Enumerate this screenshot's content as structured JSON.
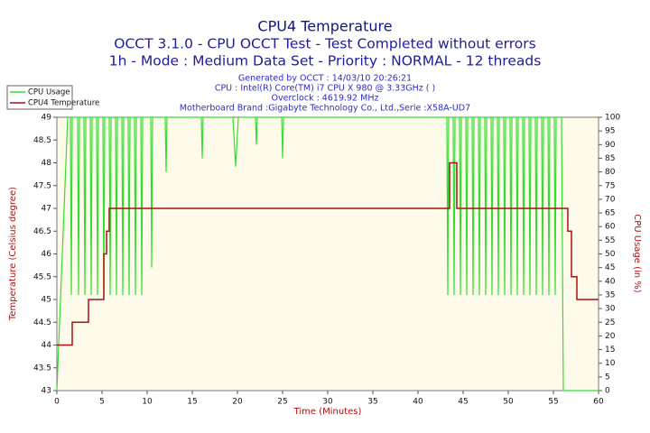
{
  "chart_data": {
    "type": "line",
    "title": "CPU4 Temperature",
    "subtitle_lines": [
      "OCCT 3.1.0 - CPU OCCT Test - Test Completed without errors",
      "1h - Mode : Medium Data Set - Priority : NORMAL - 12 threads"
    ],
    "info_lines": [
      "Generated by OCCT : 14/03/10 20:26:21",
      "CPU : Intel(R) Core(TM) i7 CPU X 980 @ 3.33GHz (  )",
      "Overclock : 4619.92 MHz",
      "Motherboard Brand :Gigabyte Technology Co., Ltd.,Serie :X58A-UD7"
    ],
    "x_label": "Time (Minutes)",
    "y_label": "Temperature (Celsius degree)",
    "y2_label": "CPU Usage (in %)",
    "xlim": [
      0,
      60
    ],
    "xticks": [
      0,
      5,
      10,
      15,
      20,
      25,
      30,
      35,
      40,
      45,
      50,
      55,
      60
    ],
    "ylim": [
      43,
      49
    ],
    "yticks": [
      43,
      43.5,
      44,
      44.5,
      45,
      45.5,
      46,
      46.5,
      47,
      47.5,
      48,
      48.5,
      49
    ],
    "y2lim": [
      0,
      100
    ],
    "y2ticks": [
      0,
      5,
      10,
      15,
      20,
      25,
      30,
      35,
      40,
      45,
      50,
      55,
      60,
      65,
      70,
      75,
      80,
      85,
      90,
      95,
      100
    ],
    "grid": false,
    "legend": "upper left",
    "series": [
      {
        "name": "CPU Usage",
        "color": "#33dd33",
        "axis": "y2",
        "x": [
          0,
          1.2,
          1.5,
          1.6,
          1.7,
          2.3,
          2.4,
          2.5,
          3.0,
          3.1,
          3.2,
          3.7,
          3.8,
          3.9,
          4.4,
          4.5,
          4.6,
          5.1,
          5.2,
          5.3,
          5.8,
          5.9,
          6.0,
          6.5,
          6.6,
          6.7,
          7.2,
          7.3,
          7.4,
          7.9,
          8.0,
          8.1,
          8.6,
          8.7,
          8.8,
          9.3,
          9.4,
          9.5,
          10.4,
          10.5,
          10.6,
          12.0,
          12.1,
          12.2,
          16.0,
          16.1,
          16.2,
          19.5,
          19.8,
          20.1,
          22.0,
          22.1,
          22.2,
          24.9,
          25.0,
          25.1,
          43.2,
          43.3,
          43.4,
          43.9,
          44.0,
          44.1,
          44.6,
          44.7,
          44.8,
          45.3,
          45.4,
          45.5,
          46.0,
          46.1,
          46.2,
          46.7,
          46.8,
          46.9,
          47.4,
          47.5,
          47.6,
          48.1,
          48.2,
          48.3,
          48.8,
          48.9,
          49.0,
          49.5,
          49.6,
          49.7,
          50.2,
          50.3,
          50.4,
          50.9,
          51.0,
          51.1,
          51.6,
          51.7,
          51.8,
          52.3,
          52.4,
          52.5,
          53.0,
          53.1,
          53.2,
          53.7,
          53.8,
          53.9,
          54.4,
          54.5,
          54.6,
          55.1,
          55.2,
          55.3,
          55.9,
          56.1,
          60
        ],
        "values": [
          0,
          100,
          100,
          35,
          100,
          100,
          35,
          100,
          100,
          35,
          100,
          100,
          35,
          100,
          100,
          35,
          100,
          100,
          35,
          100,
          100,
          35,
          100,
          100,
          35,
          100,
          100,
          35,
          100,
          100,
          35,
          100,
          100,
          35,
          100,
          100,
          35,
          100,
          100,
          45,
          100,
          100,
          80,
          100,
          100,
          85,
          100,
          100,
          82,
          100,
          100,
          90,
          100,
          100,
          85,
          100,
          100,
          35,
          100,
          100,
          35,
          100,
          100,
          35,
          100,
          100,
          35,
          100,
          100,
          35,
          100,
          100,
          35,
          100,
          100,
          35,
          100,
          100,
          35,
          100,
          100,
          35,
          100,
          100,
          35,
          100,
          100,
          35,
          100,
          100,
          35,
          100,
          100,
          35,
          100,
          100,
          35,
          100,
          100,
          35,
          100,
          100,
          35,
          100,
          100,
          35,
          100,
          100,
          35,
          100,
          100,
          0,
          0
        ]
      },
      {
        "name": "CPU4 Temperature",
        "color": "#aa1111",
        "axis": "y",
        "x": [
          0,
          1.7,
          1.7,
          3.5,
          3.5,
          5.2,
          5.2,
          5.5,
          5.5,
          5.8,
          5.8,
          43.5,
          43.5,
          44.3,
          44.3,
          56.6,
          56.6,
          57.0,
          57.0,
          57.6,
          57.6,
          60
        ],
        "values": [
          44,
          44,
          44.5,
          44.5,
          45,
          45,
          46,
          46,
          46.5,
          46.5,
          47,
          47,
          48,
          48,
          47,
          47,
          46.5,
          46.5,
          45.5,
          45.5,
          45,
          45
        ]
      }
    ]
  }
}
